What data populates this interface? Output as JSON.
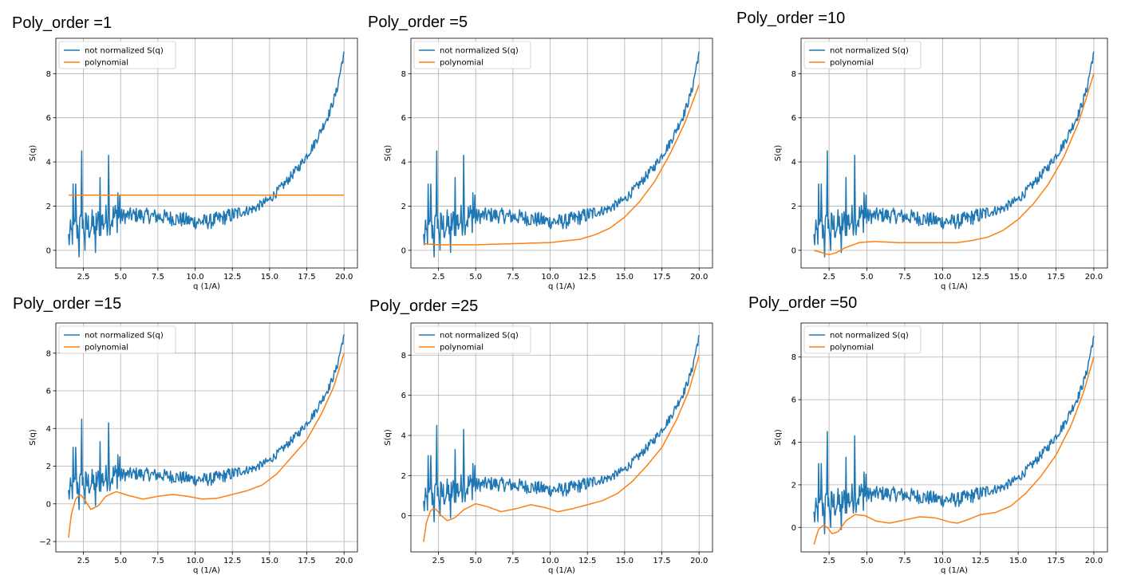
{
  "chart_data": [
    {
      "type": "line",
      "title": "Poly_order =1",
      "xlabel": "q (1/A)",
      "ylabel": "S(q)",
      "xlim": [
        0.65,
        20.9
      ],
      "ylim": [
        -0.8,
        9.6
      ],
      "xticks": [
        2.5,
        5.0,
        7.5,
        10.0,
        12.5,
        15.0,
        17.5,
        20.0
      ],
      "xtick_labels": [
        "2.5",
        "5.0",
        "7.5",
        "10.0",
        "12.5",
        "15.0",
        "17.5",
        "20.0"
      ],
      "yticks": [
        0,
        2,
        4,
        6,
        8
      ],
      "ytick_labels": [
        "0",
        "2",
        "4",
        "6",
        "8"
      ],
      "grid": true,
      "legend": "upper-left",
      "series": [
        {
          "name": "not normalized S(q)",
          "color": "#1f77b4",
          "style": "noisy",
          "x": [
            1.5,
            2.0,
            3.0,
            4.5,
            6.0,
            8.0,
            10.0,
            11.0,
            12.5,
            14.0,
            15.0,
            16.0,
            17.0,
            18.0,
            19.0,
            19.5,
            20.0
          ],
          "y": [
            0.5,
            1.0,
            1.1,
            1.5,
            1.6,
            1.5,
            1.3,
            1.3,
            1.6,
            1.9,
            2.3,
            3.0,
            3.8,
            4.8,
            6.2,
            7.2,
            9.0
          ]
        },
        {
          "name": "polynomial",
          "color": "#ff7f0e",
          "x": [
            1.5,
            20.0
          ],
          "y": [
            2.5,
            2.5
          ]
        }
      ]
    },
    {
      "type": "line",
      "title": "Poly_order =5",
      "xlabel": "q (1/A)",
      "ylabel": "S(q)",
      "xlim": [
        0.65,
        20.9
      ],
      "ylim": [
        -0.8,
        9.6
      ],
      "xticks": [
        2.5,
        5.0,
        7.5,
        10.0,
        12.5,
        15.0,
        17.5,
        20.0
      ],
      "xtick_labels": [
        "2.5",
        "5.0",
        "7.5",
        "10.0",
        "12.5",
        "15.0",
        "17.5",
        "20.0"
      ],
      "yticks": [
        0,
        2,
        4,
        6,
        8
      ],
      "ytick_labels": [
        "0",
        "2",
        "4",
        "6",
        "8"
      ],
      "grid": true,
      "legend": "upper-left",
      "series": [
        {
          "name": "not normalized S(q)",
          "color": "#1f77b4",
          "style": "noisy",
          "x": [
            1.5,
            2.0,
            3.0,
            4.5,
            6.0,
            8.0,
            10.0,
            11.0,
            12.5,
            14.0,
            15.0,
            16.0,
            17.0,
            18.0,
            19.0,
            19.5,
            20.0
          ],
          "y": [
            0.5,
            1.0,
            1.1,
            1.5,
            1.6,
            1.5,
            1.3,
            1.3,
            1.6,
            1.9,
            2.3,
            3.0,
            3.8,
            4.8,
            6.2,
            7.2,
            9.0
          ]
        },
        {
          "name": "polynomial",
          "color": "#ff7f0e",
          "x": [
            1.5,
            2.5,
            5.0,
            7.5,
            10.0,
            12.0,
            13.0,
            14.0,
            15.0,
            16.0,
            17.0,
            18.0,
            19.0,
            20.0
          ],
          "y": [
            0.3,
            0.25,
            0.25,
            0.3,
            0.35,
            0.5,
            0.7,
            1.0,
            1.5,
            2.2,
            3.1,
            4.3,
            5.7,
            7.5
          ]
        }
      ]
    },
    {
      "type": "line",
      "title": "Poly_order =10",
      "xlabel": "q (1/A)",
      "ylabel": "S(q)",
      "xlim": [
        0.65,
        20.9
      ],
      "ylim": [
        -0.8,
        9.6
      ],
      "xticks": [
        2.5,
        5.0,
        7.5,
        10.0,
        12.5,
        15.0,
        17.5,
        20.0
      ],
      "xtick_labels": [
        "2.5",
        "5.0",
        "7.5",
        "10.0",
        "12.5",
        "15.0",
        "17.5",
        "20.0"
      ],
      "yticks": [
        0,
        2,
        4,
        6,
        8
      ],
      "ytick_labels": [
        "0",
        "2",
        "4",
        "6",
        "8"
      ],
      "grid": true,
      "legend": "upper-left",
      "series": [
        {
          "name": "not normalized S(q)",
          "color": "#1f77b4",
          "style": "noisy",
          "x": [
            1.5,
            2.0,
            3.0,
            4.5,
            6.0,
            8.0,
            10.0,
            11.0,
            12.5,
            14.0,
            15.0,
            16.0,
            17.0,
            18.0,
            19.0,
            19.5,
            20.0
          ],
          "y": [
            0.5,
            1.0,
            1.1,
            1.5,
            1.6,
            1.5,
            1.3,
            1.3,
            1.6,
            1.9,
            2.3,
            3.0,
            3.8,
            4.8,
            6.2,
            7.2,
            9.0
          ]
        },
        {
          "name": "polynomial",
          "color": "#ff7f0e",
          "x": [
            1.5,
            2.0,
            2.5,
            3.0,
            3.5,
            4.5,
            5.5,
            7.0,
            9.0,
            11.0,
            12.0,
            13.0,
            14.0,
            15.0,
            16.0,
            17.0,
            18.0,
            19.0,
            20.0
          ],
          "y": [
            0.0,
            -0.1,
            -0.2,
            -0.1,
            0.1,
            0.35,
            0.4,
            0.35,
            0.35,
            0.35,
            0.45,
            0.6,
            0.9,
            1.4,
            2.1,
            3.0,
            4.2,
            5.8,
            8.0
          ]
        }
      ]
    },
    {
      "type": "line",
      "title": "Poly_order =15",
      "xlabel": "q (1/A)",
      "ylabel": "S(q)",
      "xlim": [
        0.65,
        20.9
      ],
      "ylim": [
        -2.55,
        9.6
      ],
      "xticks": [
        2.5,
        5.0,
        7.5,
        10.0,
        12.5,
        15.0,
        17.5,
        20.0
      ],
      "xtick_labels": [
        "2.5",
        "5.0",
        "7.5",
        "10.0",
        "12.5",
        "15.0",
        "17.5",
        "20.0"
      ],
      "yticks": [
        -2,
        0,
        2,
        4,
        6,
        8
      ],
      "ytick_labels": [
        "−2",
        "0",
        "2",
        "4",
        "6",
        "8"
      ],
      "grid": true,
      "legend": "upper-left",
      "series": [
        {
          "name": "not normalized S(q)",
          "color": "#1f77b4",
          "style": "noisy",
          "x": [
            1.5,
            2.0,
            3.0,
            4.5,
            6.0,
            8.0,
            10.0,
            11.0,
            12.5,
            14.0,
            15.0,
            16.0,
            17.0,
            18.0,
            19.0,
            19.5,
            20.0
          ],
          "y": [
            0.5,
            1.0,
            1.1,
            1.5,
            1.6,
            1.5,
            1.3,
            1.3,
            1.6,
            1.9,
            2.3,
            3.0,
            3.8,
            4.8,
            6.2,
            7.2,
            9.0
          ]
        },
        {
          "name": "polynomial",
          "color": "#ff7f0e",
          "x": [
            1.5,
            1.7,
            2.0,
            2.3,
            2.6,
            3.0,
            3.5,
            4.0,
            4.7,
            5.5,
            6.5,
            7.5,
            8.5,
            9.5,
            10.5,
            11.5,
            12.5,
            13.5,
            14.5,
            15.5,
            16.5,
            17.5,
            18.5,
            19.3,
            20.0
          ],
          "y": [
            -1.8,
            -0.5,
            0.3,
            0.5,
            0.2,
            -0.3,
            -0.1,
            0.4,
            0.65,
            0.45,
            0.25,
            0.4,
            0.5,
            0.4,
            0.25,
            0.3,
            0.5,
            0.7,
            1.0,
            1.6,
            2.5,
            3.4,
            4.8,
            6.2,
            8.0
          ]
        }
      ]
    },
    {
      "type": "line",
      "title": "Poly_order =25",
      "xlabel": "q (1/A)",
      "ylabel": "S(q)",
      "xlim": [
        0.65,
        20.9
      ],
      "ylim": [
        -1.8,
        9.6
      ],
      "xticks": [
        2.5,
        5.0,
        7.5,
        10.0,
        12.5,
        15.0,
        17.5,
        20.0
      ],
      "xtick_labels": [
        "2.5",
        "5.0",
        "7.5",
        "10.0",
        "12.5",
        "15.0",
        "17.5",
        "20.0"
      ],
      "yticks": [
        0,
        2,
        4,
        6,
        8
      ],
      "ytick_labels": [
        "0",
        "2",
        "4",
        "6",
        "8"
      ],
      "grid": true,
      "legend": "upper-left",
      "series": [
        {
          "name": "not normalized S(q)",
          "color": "#1f77b4",
          "style": "noisy",
          "x": [
            1.5,
            2.0,
            3.0,
            4.5,
            6.0,
            8.0,
            10.0,
            11.0,
            12.5,
            14.0,
            15.0,
            16.0,
            17.0,
            18.0,
            19.0,
            19.5,
            20.0
          ],
          "y": [
            0.5,
            1.0,
            1.1,
            1.5,
            1.6,
            1.5,
            1.3,
            1.3,
            1.6,
            1.9,
            2.3,
            3.0,
            3.8,
            4.8,
            6.2,
            7.2,
            9.0
          ]
        },
        {
          "name": "polynomial",
          "color": "#ff7f0e",
          "x": [
            1.5,
            1.7,
            2.0,
            2.3,
            2.7,
            3.1,
            3.6,
            4.2,
            5.0,
            5.8,
            6.7,
            7.7,
            8.7,
            9.7,
            10.5,
            11.5,
            12.5,
            13.5,
            14.5,
            15.5,
            16.5,
            17.5,
            18.5,
            19.3,
            20.0
          ],
          "y": [
            -1.3,
            -0.3,
            0.3,
            0.35,
            0.0,
            -0.25,
            -0.1,
            0.3,
            0.6,
            0.45,
            0.2,
            0.35,
            0.55,
            0.4,
            0.2,
            0.35,
            0.55,
            0.75,
            1.1,
            1.7,
            2.5,
            3.4,
            4.8,
            6.2,
            8.0
          ]
        }
      ]
    },
    {
      "type": "line",
      "title": "Poly_order =50",
      "xlabel": "q (1/A)",
      "ylabel": "S(q)",
      "xlim": [
        0.65,
        20.9
      ],
      "ylim": [
        -1.15,
        9.6
      ],
      "xticks": [
        2.5,
        5.0,
        7.5,
        10.0,
        12.5,
        15.0,
        17.5,
        20.0
      ],
      "xtick_labels": [
        "2.5",
        "5.0",
        "7.5",
        "10.0",
        "12.5",
        "15.0",
        "17.5",
        "20.0"
      ],
      "yticks": [
        0,
        2,
        4,
        6,
        8
      ],
      "ytick_labels": [
        "0",
        "2",
        "4",
        "6",
        "8"
      ],
      "grid": true,
      "legend": "upper-left",
      "series": [
        {
          "name": "not normalized S(q)",
          "color": "#1f77b4",
          "style": "noisy",
          "x": [
            1.5,
            2.0,
            3.0,
            4.5,
            6.0,
            8.0,
            10.0,
            11.0,
            12.5,
            14.0,
            15.0,
            16.0,
            17.0,
            18.0,
            19.0,
            19.5,
            20.0
          ],
          "y": [
            0.5,
            1.0,
            1.1,
            1.5,
            1.6,
            1.5,
            1.3,
            1.3,
            1.6,
            1.9,
            2.3,
            3.0,
            3.8,
            4.8,
            6.2,
            7.2,
            9.0
          ]
        },
        {
          "name": "polynomial",
          "color": "#ff7f0e",
          "x": [
            1.5,
            1.8,
            2.1,
            2.4,
            2.7,
            3.1,
            3.6,
            4.2,
            4.9,
            5.6,
            6.5,
            7.5,
            8.5,
            9.5,
            10.5,
            11.0,
            11.8,
            12.5,
            13.5,
            14.5,
            15.5,
            16.5,
            17.5,
            18.5,
            19.3,
            20.0
          ],
          "y": [
            -0.8,
            -0.1,
            0.1,
            0.0,
            -0.3,
            -0.2,
            0.3,
            0.6,
            0.55,
            0.3,
            0.2,
            0.35,
            0.5,
            0.45,
            0.25,
            0.2,
            0.4,
            0.6,
            0.7,
            1.0,
            1.6,
            2.4,
            3.4,
            4.8,
            6.3,
            8.0
          ]
        }
      ]
    }
  ]
}
